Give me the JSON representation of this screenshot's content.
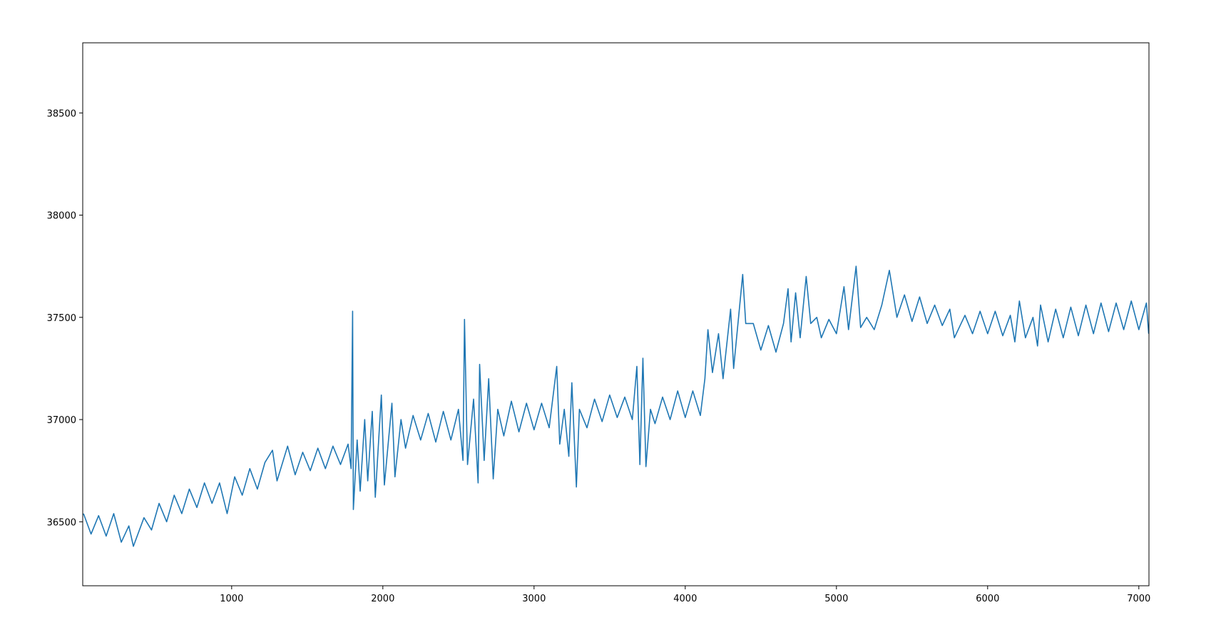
{
  "chart_data": {
    "type": "line",
    "x": [
      20,
      70,
      120,
      170,
      220,
      270,
      320,
      350,
      420,
      470,
      520,
      570,
      620,
      670,
      720,
      770,
      820,
      870,
      920,
      970,
      1020,
      1070,
      1120,
      1170,
      1220,
      1270,
      1300,
      1370,
      1420,
      1470,
      1520,
      1570,
      1620,
      1670,
      1720,
      1770,
      1790,
      1800,
      1805,
      1830,
      1850,
      1880,
      1900,
      1930,
      1950,
      1990,
      2010,
      2060,
      2080,
      2120,
      2150,
      2200,
      2250,
      2300,
      2350,
      2400,
      2450,
      2500,
      2530,
      2540,
      2560,
      2600,
      2630,
      2640,
      2670,
      2700,
      2730,
      2760,
      2800,
      2850,
      2900,
      2950,
      3000,
      3050,
      3100,
      3150,
      3170,
      3200,
      3230,
      3250,
      3280,
      3300,
      3350,
      3400,
      3450,
      3500,
      3550,
      3600,
      3650,
      3680,
      3700,
      3720,
      3740,
      3770,
      3800,
      3850,
      3900,
      3950,
      4000,
      4050,
      4100,
      4130,
      4150,
      4180,
      4220,
      4250,
      4300,
      4320,
      4380,
      4400,
      4450,
      4500,
      4550,
      4600,
      4650,
      4680,
      4700,
      4730,
      4760,
      4800,
      4830,
      4870,
      4900,
      4950,
      5000,
      5050,
      5080,
      5130,
      5160,
      5200,
      5250,
      5300,
      5350,
      5400,
      5450,
      5500,
      5550,
      5600,
      5650,
      5700,
      5750,
      5780,
      5850,
      5900,
      5950,
      6000,
      6050,
      6100,
      6150,
      6180,
      6210,
      6250,
      6300,
      6330,
      6350,
      6400,
      6450,
      6500,
      6550,
      6600,
      6650,
      6700,
      6750,
      6800,
      6850,
      6900,
      6950,
      7000,
      7050,
      7065
    ],
    "series": [
      {
        "color": "#1f77b4",
        "values": [
          36540,
          36440,
          36530,
          36430,
          36540,
          36400,
          36480,
          36380,
          36520,
          36460,
          36590,
          36500,
          36630,
          36540,
          36660,
          36570,
          36690,
          36590,
          36690,
          36540,
          36720,
          36630,
          36760,
          36660,
          36790,
          36850,
          36700,
          36870,
          36730,
          36840,
          36750,
          36860,
          36760,
          36870,
          36780,
          36880,
          36760,
          37530,
          36560,
          36900,
          36650,
          37000,
          36700,
          37040,
          36620,
          37120,
          36680,
          37080,
          36720,
          37000,
          36860,
          37020,
          36900,
          37030,
          36890,
          37040,
          36900,
          37050,
          36800,
          37490,
          36780,
          37100,
          36690,
          37270,
          36800,
          37200,
          36710,
          37050,
          36920,
          37090,
          36940,
          37080,
          36950,
          37080,
          36960,
          37260,
          36880,
          37050,
          36820,
          37180,
          36670,
          37050,
          36960,
          37100,
          36990,
          37120,
          37010,
          37110,
          37000,
          37260,
          36780,
          37300,
          36770,
          37050,
          36980,
          37110,
          37000,
          37140,
          37010,
          37140,
          37020,
          37200,
          37440,
          37230,
          37420,
          37200,
          37540,
          37250,
          37710,
          37470,
          37470,
          37340,
          37460,
          37330,
          37470,
          37640,
          37380,
          37620,
          37400,
          37700,
          37470,
          37500,
          37400,
          37490,
          37420,
          37650,
          37440,
          37750,
          37450,
          37500,
          37440,
          37560,
          37730,
          37500,
          37610,
          37480,
          37600,
          37470,
          37560,
          37460,
          37540,
          37400,
          37510,
          37420,
          37530,
          37420,
          37530,
          37410,
          37510,
          37380,
          37580,
          37400,
          37500,
          37360,
          37560,
          37380,
          37540,
          37400,
          37550,
          37410,
          37560,
          37420,
          37570,
          37430,
          37570,
          37440,
          37580,
          37440,
          37570,
          37420
        ]
      }
    ],
    "xlim": [
      15,
      7067
    ],
    "xticks": [
      1000,
      2000,
      3000,
      4000,
      5000,
      6000,
      7000
    ],
    "ylim": [
      36187,
      38843
    ],
    "yticks": [
      36500,
      37000,
      37500,
      38000,
      38500
    ]
  }
}
